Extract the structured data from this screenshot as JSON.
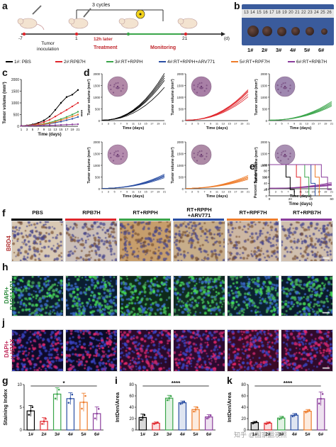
{
  "panels": {
    "a": "a",
    "b": "b",
    "c": "c",
    "d": "d",
    "e": "e",
    "f": "f",
    "g": "g",
    "h": "h",
    "i": "i",
    "j": "j",
    "k": "k"
  },
  "timeline": {
    "cycles": "3 cycles",
    "inoculation": "Tumor\ninoculation",
    "later": "12h later",
    "treatment": "Treatment",
    "monitoring": "Monitoring",
    "ticks": [
      "-7",
      "1",
      "21"
    ],
    "unit": "(d)"
  },
  "tumor_photo": {
    "ruler": [
      "13",
      "14",
      "15",
      "16",
      "17",
      "18",
      "19",
      "20",
      "21",
      "22",
      "23",
      "24",
      "25",
      "26"
    ],
    "labels": [
      "1#",
      "2#",
      "3#",
      "4#",
      "5#",
      "6#"
    ]
  },
  "legend": [
    {
      "label": "1#: PBS",
      "color": "#000000"
    },
    {
      "label": "2#:RPB7H",
      "color": "#e0262c"
    },
    {
      "label": "3#:RT+RPPH",
      "color": "#3aa54a"
    },
    {
      "label": "4#:RT+RPPH+ARV771",
      "color": "#2a4ea3"
    },
    {
      "label": "5#:RT+RPF7H",
      "color": "#ee7c2a"
    },
    {
      "label": "6#:RT+RPB7H",
      "color": "#8b3d9c"
    }
  ],
  "chart_data": [
    {
      "panel": "c",
      "type": "line",
      "xlabel": "Time (days)",
      "ylabel": "Tumor volume (mm³)",
      "x": [
        1,
        3,
        5,
        7,
        9,
        11,
        13,
        15,
        17,
        19,
        21
      ],
      "ylim": [
        0,
        2000
      ],
      "yticks": [
        0,
        500,
        1000,
        1500,
        2000
      ],
      "annotation": "****",
      "series": [
        {
          "name": "1#: PBS",
          "values": [
            20,
            40,
            80,
            150,
            250,
            420,
            700,
            1000,
            1250,
            1350,
            1550
          ]
        },
        {
          "name": "2#:RPB7H",
          "values": [
            20,
            35,
            60,
            110,
            180,
            280,
            420,
            560,
            700,
            850,
            1000
          ]
        },
        {
          "name": "3#:RT+RPPH",
          "values": [
            20,
            30,
            45,
            70,
            110,
            160,
            230,
            310,
            400,
            500,
            620
          ]
        },
        {
          "name": "4#:RT+RPPH+ARV771",
          "values": [
            20,
            25,
            35,
            50,
            75,
            110,
            150,
            200,
            260,
            320,
            400
          ]
        },
        {
          "name": "5#:RT+RPF7H",
          "values": [
            20,
            28,
            40,
            60,
            90,
            130,
            190,
            260,
            340,
            420,
            500
          ]
        },
        {
          "name": "6#:RT+RPB7H",
          "values": [
            20,
            22,
            25,
            30,
            36,
            42,
            50,
            60,
            70,
            80,
            90
          ]
        }
      ]
    },
    {
      "panel": "e",
      "type": "line",
      "xlabel": "Time (days)",
      "ylabel": "Percent Survival (%)",
      "xlim": [
        0,
        60
      ],
      "ylim": [
        0,
        100
      ],
      "xticks": [
        0,
        20,
        40,
        60
      ],
      "yticks": [
        0,
        20,
        40,
        60,
        80,
        100
      ],
      "series": [
        {
          "name": "1#: PBS",
          "steps": [
            [
              0,
              100
            ],
            [
              16,
              100
            ],
            [
              16,
              60
            ],
            [
              20,
              60
            ],
            [
              20,
              20
            ],
            [
              24,
              20
            ],
            [
              24,
              0
            ]
          ]
        },
        {
          "name": "2#:RPB7H",
          "steps": [
            [
              0,
              100
            ],
            [
              26,
              100
            ],
            [
              26,
              60
            ],
            [
              30,
              60
            ],
            [
              30,
              0
            ]
          ]
        },
        {
          "name": "3#:RT+RPPH",
          "steps": [
            [
              0,
              100
            ],
            [
              34,
              100
            ],
            [
              34,
              60
            ],
            [
              38,
              60
            ],
            [
              38,
              0
            ]
          ]
        },
        {
          "name": "4#:RT+RPPH+ARV771",
          "steps": [
            [
              0,
              100
            ],
            [
              40,
              100
            ],
            [
              40,
              40
            ],
            [
              44,
              40
            ],
            [
              44,
              0
            ]
          ]
        },
        {
          "name": "5#:RT+RPF7H",
          "steps": [
            [
              0,
              100
            ],
            [
              44,
              100
            ],
            [
              44,
              60
            ],
            [
              48,
              60
            ],
            [
              48,
              0
            ]
          ]
        },
        {
          "name": "6#:RT+RPB7H",
          "steps": [
            [
              0,
              100
            ],
            [
              50,
              100
            ],
            [
              50,
              60
            ],
            [
              56,
              60
            ],
            [
              56,
              20
            ],
            [
              60,
              20
            ]
          ]
        }
      ]
    },
    {
      "panel": "g",
      "type": "bar",
      "ylabel": "Staining Index",
      "categories": [
        "1#",
        "2#",
        "3#",
        "4#",
        "5#",
        "6#"
      ],
      "values": [
        4.2,
        1.9,
        7.9,
        6.9,
        6.1,
        3.6
      ],
      "errors": [
        1.2,
        0.8,
        1.4,
        1.3,
        2.0,
        1.5
      ],
      "ylim": [
        0,
        10
      ],
      "yticks": [
        0,
        5,
        10
      ],
      "annotation": "*"
    },
    {
      "panel": "i",
      "type": "bar",
      "ylabel": "IntDen/Area",
      "categories": [
        "1#",
        "2#",
        "3#",
        "4#",
        "5#",
        "6#"
      ],
      "values": [
        22,
        12,
        56,
        48,
        36,
        23
      ],
      "errors": [
        6,
        2,
        5,
        3,
        5,
        4
      ],
      "ylim": [
        0,
        80
      ],
      "yticks": [
        0,
        20,
        40,
        60,
        80
      ],
      "annotation": "****"
    },
    {
      "panel": "k",
      "type": "bar",
      "ylabel": "IntDen/Area",
      "categories": [
        "1#",
        "2#",
        "3#",
        "4#",
        "5#",
        "6#"
      ],
      "values": [
        13,
        12,
        21,
        26,
        33,
        55
      ],
      "errors": [
        2,
        2,
        3,
        3,
        3,
        12
      ],
      "ylim": [
        0,
        80
      ],
      "yticks": [
        0,
        20,
        40,
        60,
        80
      ],
      "annotation": "****"
    }
  ],
  "d_panels": {
    "xlabel": "Time (days)",
    "ylabel": "Tumor volume (mm³)",
    "x": [
      1,
      3,
      5,
      7,
      9,
      11,
      13,
      15,
      17,
      19,
      21
    ],
    "yticks": [
      0,
      500,
      1000,
      1500,
      2000
    ]
  },
  "micro": {
    "groups": [
      "PBS",
      "RPB7H",
      "RT+RPPH",
      "RT+RPPH\n+ARV771",
      "RT+RPF7H",
      "RT+RPB7H"
    ],
    "rows": [
      "BRD4",
      "DAPI+\nRAD51AP1",
      "DAPI+\nγ-H2AX"
    ]
  },
  "watermark": "知乎 @国家翻液照"
}
